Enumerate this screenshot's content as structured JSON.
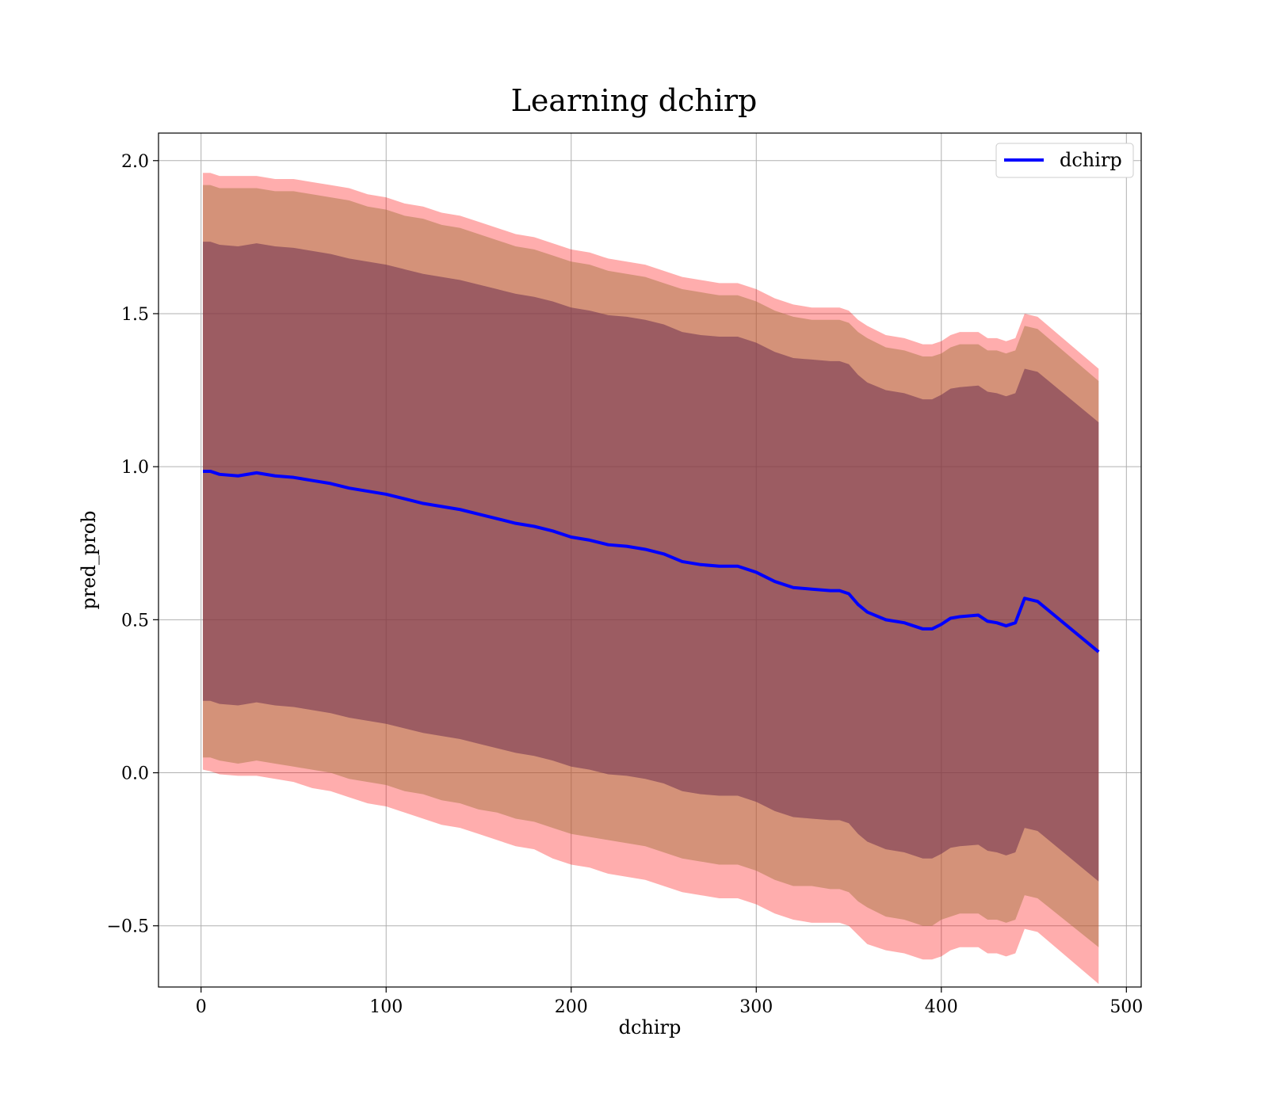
{
  "chart_data": {
    "type": "line",
    "title": "Learning dchirp",
    "xlabel": "dchirp",
    "ylabel": "pred_prob",
    "xlim": [
      -23,
      508
    ],
    "ylim": [
      -0.7,
      2.09
    ],
    "xticks": [
      0,
      100,
      200,
      300,
      400,
      500
    ],
    "xtick_labels": [
      "0",
      "100",
      "200",
      "300",
      "400",
      "500"
    ],
    "yticks": [
      -0.5,
      0.0,
      0.5,
      1.0,
      1.5,
      2.0
    ],
    "ytick_labels": [
      "−0.5",
      "0.0",
      "0.5",
      "1.0",
      "1.5",
      "2.0"
    ],
    "grid": true,
    "legend": {
      "position": "upper-right",
      "entries": [
        "dchirp"
      ]
    },
    "colors": {
      "line": "#0000ff",
      "band_outer": "#ff9999",
      "band_middle": "#c8967a",
      "band_inner": "#a07078",
      "grid": "#b0b0b0"
    },
    "x": [
      1,
      5,
      10,
      20,
      30,
      40,
      50,
      60,
      70,
      80,
      90,
      100,
      110,
      120,
      130,
      140,
      150,
      160,
      170,
      180,
      190,
      200,
      210,
      220,
      230,
      240,
      250,
      260,
      270,
      280,
      290,
      300,
      310,
      320,
      330,
      340,
      345,
      350,
      355,
      360,
      370,
      380,
      390,
      395,
      400,
      405,
      410,
      420,
      425,
      430,
      435,
      440,
      445,
      452,
      485
    ],
    "series": [
      {
        "name": "dchirp",
        "values": [
          0.985,
          0.985,
          0.975,
          0.97,
          0.98,
          0.97,
          0.965,
          0.955,
          0.945,
          0.93,
          0.92,
          0.91,
          0.895,
          0.88,
          0.87,
          0.86,
          0.845,
          0.83,
          0.815,
          0.805,
          0.79,
          0.77,
          0.76,
          0.745,
          0.74,
          0.73,
          0.715,
          0.69,
          0.68,
          0.675,
          0.675,
          0.655,
          0.625,
          0.605,
          0.6,
          0.595,
          0.595,
          0.585,
          0.55,
          0.525,
          0.5,
          0.49,
          0.47,
          0.47,
          0.485,
          0.505,
          0.51,
          0.515,
          0.495,
          0.49,
          0.48,
          0.49,
          0.57,
          0.56,
          0.395
        ]
      }
    ],
    "bands": [
      {
        "label": "outer",
        "lower": [
          0.01,
          0.005,
          -0.005,
          -0.01,
          -0.01,
          -0.02,
          -0.03,
          -0.05,
          -0.06,
          -0.08,
          -0.1,
          -0.11,
          -0.13,
          -0.15,
          -0.17,
          -0.18,
          -0.2,
          -0.22,
          -0.24,
          -0.25,
          -0.28,
          -0.3,
          -0.31,
          -0.33,
          -0.34,
          -0.35,
          -0.37,
          -0.39,
          -0.4,
          -0.41,
          -0.41,
          -0.43,
          -0.46,
          -0.48,
          -0.49,
          -0.49,
          -0.49,
          -0.5,
          -0.53,
          -0.56,
          -0.58,
          -0.59,
          -0.61,
          -0.61,
          -0.6,
          -0.58,
          -0.57,
          -0.57,
          -0.59,
          -0.59,
          -0.6,
          -0.59,
          -0.51,
          -0.52,
          -0.69
        ],
        "upper": [
          1.96,
          1.96,
          1.95,
          1.95,
          1.95,
          1.94,
          1.94,
          1.93,
          1.92,
          1.91,
          1.89,
          1.88,
          1.86,
          1.85,
          1.83,
          1.82,
          1.8,
          1.78,
          1.76,
          1.75,
          1.73,
          1.71,
          1.7,
          1.68,
          1.67,
          1.66,
          1.64,
          1.62,
          1.61,
          1.6,
          1.6,
          1.58,
          1.55,
          1.53,
          1.52,
          1.52,
          1.52,
          1.51,
          1.48,
          1.46,
          1.43,
          1.42,
          1.4,
          1.4,
          1.41,
          1.43,
          1.44,
          1.44,
          1.42,
          1.42,
          1.41,
          1.42,
          1.5,
          1.49,
          1.32
        ]
      },
      {
        "label": "middle",
        "lower": [
          0.05,
          0.05,
          0.04,
          0.03,
          0.04,
          0.03,
          0.02,
          0.01,
          0.0,
          -0.02,
          -0.03,
          -0.04,
          -0.06,
          -0.07,
          -0.09,
          -0.1,
          -0.12,
          -0.13,
          -0.15,
          -0.16,
          -0.18,
          -0.2,
          -0.21,
          -0.22,
          -0.23,
          -0.24,
          -0.26,
          -0.28,
          -0.29,
          -0.3,
          -0.3,
          -0.32,
          -0.35,
          -0.37,
          -0.37,
          -0.38,
          -0.38,
          -0.39,
          -0.42,
          -0.44,
          -0.47,
          -0.48,
          -0.5,
          -0.5,
          -0.48,
          -0.47,
          -0.46,
          -0.46,
          -0.48,
          -0.48,
          -0.49,
          -0.48,
          -0.4,
          -0.41,
          -0.57
        ],
        "upper": [
          1.92,
          1.92,
          1.91,
          1.91,
          1.91,
          1.9,
          1.9,
          1.89,
          1.88,
          1.87,
          1.85,
          1.84,
          1.82,
          1.81,
          1.79,
          1.78,
          1.76,
          1.74,
          1.72,
          1.71,
          1.69,
          1.67,
          1.66,
          1.64,
          1.63,
          1.62,
          1.6,
          1.58,
          1.57,
          1.56,
          1.56,
          1.54,
          1.51,
          1.49,
          1.48,
          1.48,
          1.48,
          1.47,
          1.44,
          1.42,
          1.39,
          1.38,
          1.36,
          1.36,
          1.37,
          1.39,
          1.4,
          1.4,
          1.38,
          1.38,
          1.37,
          1.38,
          1.46,
          1.45,
          1.28
        ]
      },
      {
        "label": "inner",
        "lower": [
          0.235,
          0.235,
          0.225,
          0.22,
          0.23,
          0.22,
          0.215,
          0.205,
          0.195,
          0.18,
          0.17,
          0.16,
          0.145,
          0.13,
          0.12,
          0.11,
          0.095,
          0.08,
          0.065,
          0.055,
          0.04,
          0.02,
          0.01,
          -0.005,
          -0.01,
          -0.02,
          -0.035,
          -0.06,
          -0.07,
          -0.075,
          -0.075,
          -0.095,
          -0.125,
          -0.145,
          -0.15,
          -0.155,
          -0.155,
          -0.165,
          -0.2,
          -0.225,
          -0.25,
          -0.26,
          -0.28,
          -0.28,
          -0.265,
          -0.245,
          -0.24,
          -0.235,
          -0.255,
          -0.26,
          -0.27,
          -0.26,
          -0.18,
          -0.19,
          -0.355
        ],
        "upper": [
          1.735,
          1.735,
          1.725,
          1.72,
          1.73,
          1.72,
          1.715,
          1.705,
          1.695,
          1.68,
          1.67,
          1.66,
          1.645,
          1.63,
          1.62,
          1.61,
          1.595,
          1.58,
          1.565,
          1.555,
          1.54,
          1.52,
          1.51,
          1.495,
          1.49,
          1.48,
          1.465,
          1.44,
          1.43,
          1.425,
          1.425,
          1.405,
          1.375,
          1.355,
          1.35,
          1.345,
          1.345,
          1.335,
          1.3,
          1.275,
          1.25,
          1.24,
          1.22,
          1.22,
          1.235,
          1.255,
          1.26,
          1.265,
          1.245,
          1.24,
          1.23,
          1.24,
          1.32,
          1.31,
          1.145
        ]
      }
    ]
  }
}
